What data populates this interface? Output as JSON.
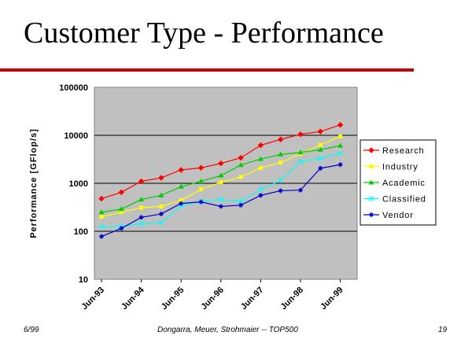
{
  "slide": {
    "title": "Customer Type - Performance",
    "footer_left": "6/99",
    "footer_center": "Dongarra, Meuer, Strohmaier -- TOP500",
    "footer_right": "19"
  },
  "chart_data": {
    "type": "line",
    "ylabel": "Performance [GFlop/s]",
    "xlabel": "",
    "y_scale": "log",
    "ylim": [
      10,
      100000
    ],
    "y_ticks": [
      "10",
      "100",
      "1000",
      "10000",
      "100000"
    ],
    "x_tick_labels": [
      "Jun-93",
      "Jun-94",
      "Jun-95",
      "Jun-96",
      "Jun-97",
      "Jun-98",
      "Jun-99"
    ],
    "x": [
      "Jun-93",
      "Nov-93",
      "Jun-94",
      "Nov-94",
      "Jun-95",
      "Nov-95",
      "Jun-96",
      "Nov-96",
      "Jun-97",
      "Nov-97",
      "Jun-98",
      "Nov-98",
      "Jun-99"
    ],
    "plot_background": "#c0c0c0",
    "grid": "horizontal",
    "legend_position": "right",
    "series": [
      {
        "name": "Research",
        "color": "#ff0000",
        "marker": "diamond",
        "values": [
          480,
          650,
          1100,
          1300,
          1900,
          2100,
          2600,
          3400,
          6200,
          8200,
          10500,
          12000,
          16500
        ]
      },
      {
        "name": "Industry",
        "color": "#ffff00",
        "marker": "square",
        "values": [
          200,
          250,
          310,
          330,
          440,
          750,
          1050,
          1350,
          2100,
          2700,
          4100,
          6300,
          9500
        ]
      },
      {
        "name": "Academic",
        "color": "#00cc00",
        "marker": "triangle",
        "values": [
          250,
          290,
          460,
          560,
          850,
          1100,
          1450,
          2400,
          3200,
          4000,
          4400,
          5000,
          6100
        ]
      },
      {
        "name": "Classified",
        "color": "#00ffff",
        "marker": "x",
        "values": [
          125,
          125,
          145,
          150,
          340,
          420,
          460,
          420,
          740,
          1150,
          2800,
          3300,
          4200
        ]
      },
      {
        "name": "Vendor",
        "color": "#0000cc",
        "marker": "star",
        "values": [
          78,
          115,
          195,
          230,
          380,
          410,
          330,
          350,
          560,
          700,
          720,
          2050,
          2450
        ]
      }
    ]
  }
}
